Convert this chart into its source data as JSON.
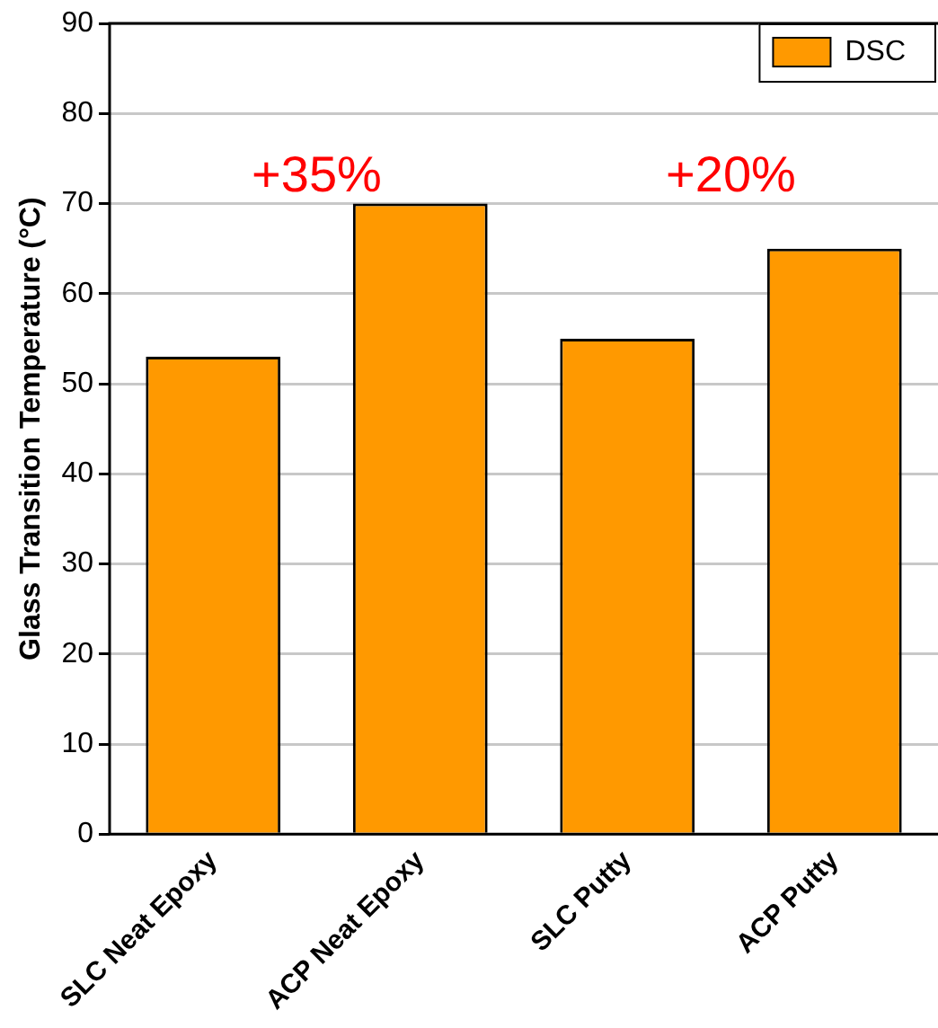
{
  "chart_data": {
    "type": "bar",
    "ylabel": "Glass Transition Temperature (°C)",
    "categories": [
      "SLC Neat Epoxy",
      "ACP Neat Epoxy",
      "SLC Putty",
      "ACP Putty"
    ],
    "series": [
      {
        "name": "DSC",
        "color": "#ff9900",
        "values": [
          53,
          70,
          55,
          65
        ]
      }
    ],
    "ylim": [
      0,
      90
    ],
    "yticks": [
      0,
      10,
      20,
      30,
      40,
      50,
      60,
      70,
      80,
      90
    ],
    "grid": "y",
    "legend": "top right",
    "annotations": [
      "+35%",
      "+20%"
    ]
  }
}
